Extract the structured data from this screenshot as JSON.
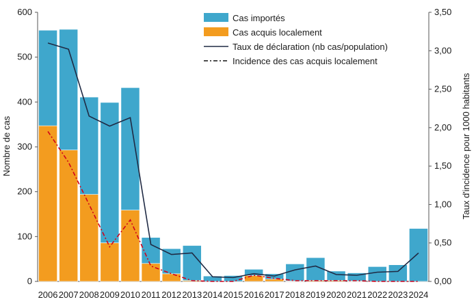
{
  "chart_data": {
    "type": "bar",
    "categories": [
      "2006",
      "2007",
      "2008",
      "2009",
      "2010",
      "2011",
      "2012",
      "2013",
      "2014",
      "2015",
      "2016",
      "2017",
      "2018",
      "2019",
      "2020",
      "2021",
      "2022",
      "2023",
      "2024"
    ],
    "stacked": true,
    "series": [
      {
        "name": "Cas acquis localement",
        "kind": "bar",
        "axis": "left",
        "color": "#F39C1F",
        "values": [
          347,
          293,
          194,
          86,
          159,
          40,
          17,
          2,
          0,
          0,
          13,
          5,
          1,
          2,
          2,
          1,
          0,
          0,
          0
        ]
      },
      {
        "name": "Cas importés",
        "kind": "bar",
        "axis": "left",
        "color": "#3FA7CC",
        "values": [
          213,
          269,
          217,
          313,
          273,
          58,
          56,
          78,
          12,
          13,
          14,
          12,
          38,
          51,
          21,
          18,
          33,
          37,
          118
        ]
      },
      {
        "name": "Taux de déclaration (nb cas/population)",
        "kind": "line",
        "axis": "right",
        "color": "#1F2A44",
        "values": [
          3.1,
          3.02,
          2.15,
          2.02,
          2.13,
          0.48,
          0.35,
          0.37,
          0.06,
          0.05,
          0.1,
          0.07,
          0.15,
          0.2,
          0.09,
          0.08,
          0.12,
          0.13,
          0.37
        ]
      },
      {
        "name": "Incidence des cas acquis localement",
        "kind": "dashdot-line",
        "axis": "right",
        "color": "#D0021B",
        "values": [
          1.95,
          1.55,
          1.0,
          0.45,
          0.8,
          0.2,
          0.1,
          0.01,
          0.0,
          0.0,
          0.08,
          0.04,
          0.01,
          0.01,
          0.01,
          0.01,
          0.0,
          0.0,
          0.0
        ]
      }
    ],
    "ylabel": "Nombre de cas",
    "y2label": "Taux d'incidence pour 1000 habitants",
    "ylim": [
      0,
      600
    ],
    "y2lim": [
      0,
      3.5
    ],
    "yticks": [
      "0",
      "100",
      "200",
      "300",
      "400",
      "500",
      "600"
    ],
    "y2ticks": [
      "0,00",
      "0,50",
      "1,00",
      "1,50",
      "2,00",
      "2,50",
      "3,00",
      "3,50"
    ],
    "grid": false,
    "legend": "top-center"
  }
}
